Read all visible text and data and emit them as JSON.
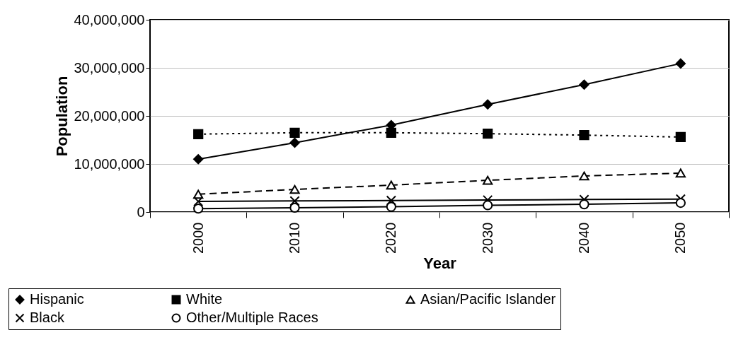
{
  "chart_data": {
    "type": "line",
    "xlabel": "Year",
    "ylabel": "Population",
    "categories": [
      "2000",
      "2010",
      "2020",
      "2030",
      "2040",
      "2050"
    ],
    "series": [
      {
        "name": "Hispanic",
        "color": "#000000",
        "marker": "diamond",
        "line_style": "solid",
        "values": [
          11000000,
          14400000,
          18100000,
          22400000,
          26500000,
          30900000
        ]
      },
      {
        "name": "White",
        "color": "#000000",
        "marker": "square",
        "line_style": "dotted",
        "values": [
          16200000,
          16500000,
          16500000,
          16300000,
          16000000,
          15600000
        ]
      },
      {
        "name": "Asian/Pacific Islander",
        "color": "#000000",
        "marker": "triangle",
        "line_style": "dashed",
        "values": [
          3700000,
          4700000,
          5600000,
          6600000,
          7500000,
          8100000
        ]
      },
      {
        "name": "Black",
        "color": "#000000",
        "marker": "cross",
        "line_style": "solid",
        "values": [
          2200000,
          2300000,
          2400000,
          2500000,
          2600000,
          2700000
        ]
      },
      {
        "name": "Other/Multiple Races",
        "color": "#000000",
        "marker": "circle",
        "line_style": "solid",
        "values": [
          700000,
          900000,
          1100000,
          1400000,
          1600000,
          1900000
        ]
      }
    ],
    "ylim": [
      0,
      40000000
    ],
    "yticks": [
      0,
      {
        "value": 10000000,
        "label": "10,000,000"
      },
      {
        "value": 20000000,
        "label": "20,000,000"
      },
      {
        "value": 30000000,
        "label": "30,000,000"
      },
      {
        "value": 40000000,
        "label": "40,000,000"
      }
    ],
    "grid": "y",
    "legend": "bottom"
  }
}
